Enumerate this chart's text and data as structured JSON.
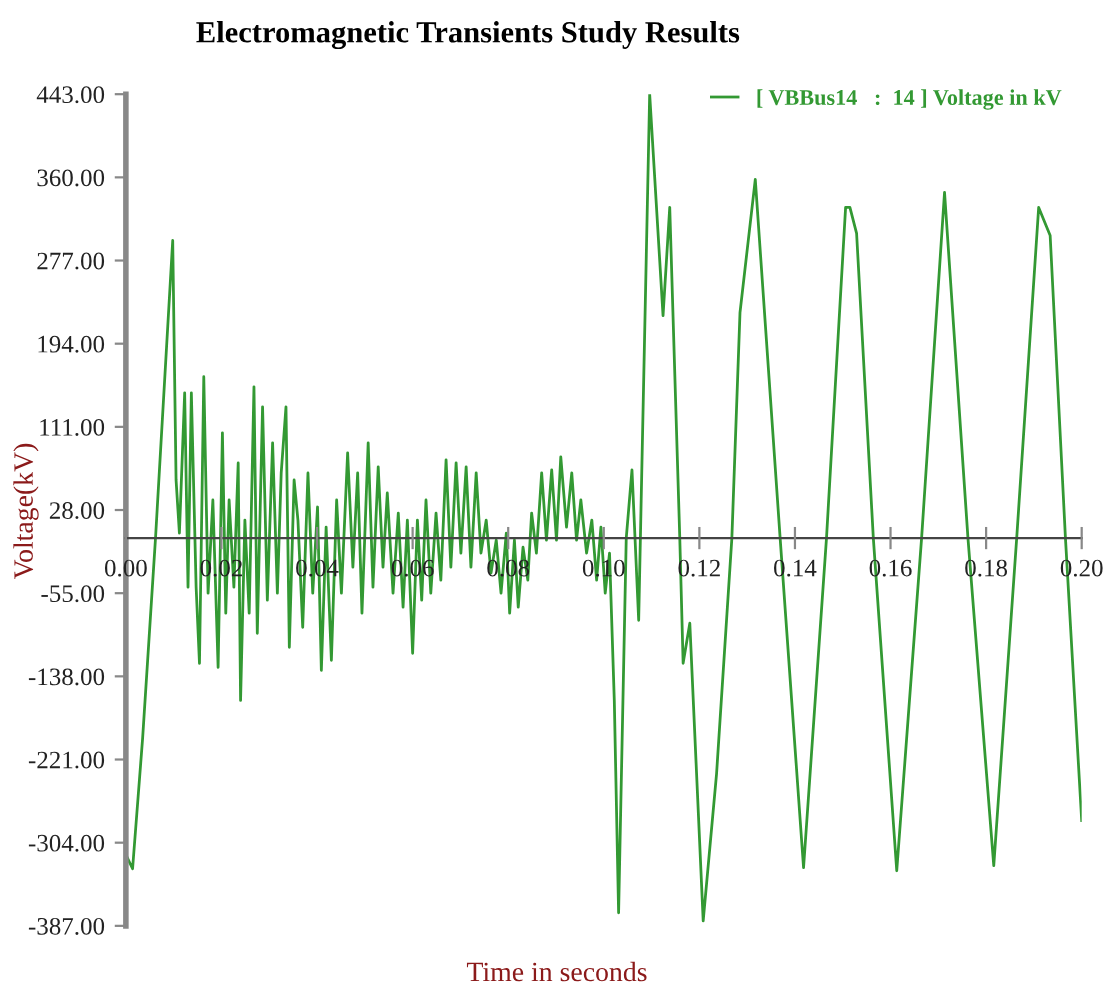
{
  "chart_data": {
    "type": "line",
    "title": "Electromagnetic Transients Study Results",
    "xlabel": "Time in seconds",
    "ylabel": "Voltage(kV)",
    "xlim": [
      0,
      0.2
    ],
    "ylim": [
      -387,
      443
    ],
    "xticks": [
      {
        "value": 0,
        "label": "0.00"
      },
      {
        "value": 0.02,
        "label": "0.02"
      },
      {
        "value": 0.04,
        "label": "0.04"
      },
      {
        "value": 0.06,
        "label": "0.06"
      },
      {
        "value": 0.08,
        "label": "0.08"
      },
      {
        "value": 0.1,
        "label": "0.10"
      },
      {
        "value": 0.12,
        "label": "0.12"
      },
      {
        "value": 0.14,
        "label": "0.14"
      },
      {
        "value": 0.16,
        "label": "0.16"
      },
      {
        "value": 0.18,
        "label": "0.18"
      },
      {
        "value": 0.2,
        "label": "0.20"
      }
    ],
    "yticks": [
      {
        "value": 443,
        "label": "443.00"
      },
      {
        "value": 360,
        "label": "360.00"
      },
      {
        "value": 277,
        "label": "277.00"
      },
      {
        "value": 194,
        "label": "194.00"
      },
      {
        "value": 111,
        "label": "111.00"
      },
      {
        "value": 28,
        "label": "28.00"
      },
      {
        "value": -55,
        "label": "-55.00"
      },
      {
        "value": -138,
        "label": "-138.00"
      },
      {
        "value": -221,
        "label": "-221.00"
      },
      {
        "value": -304,
        "label": "-304.00"
      },
      {
        "value": -387,
        "label": "-387.00"
      }
    ],
    "grid": false,
    "legend": "top right",
    "marker": "none",
    "line_style": "solid",
    "series": [
      {
        "name": "[ VBBus14   :  14 ] Voltage in kV",
        "color": "#339933",
        "x": [
          0,
          0.0014,
          0.0035,
          0.0062,
          0.0098,
          0.0105,
          0.0112,
          0.0123,
          0.013,
          0.0137,
          0.0147,
          0.0154,
          0.0163,
          0.0172,
          0.0182,
          0.0193,
          0.0202,
          0.0209,
          0.0216,
          0.0226,
          0.0235,
          0.024,
          0.0249,
          0.0258,
          0.0268,
          0.0275,
          0.0286,
          0.0296,
          0.0307,
          0.0317,
          0.0325,
          0.0335,
          0.0342,
          0.0352,
          0.036,
          0.037,
          0.0381,
          0.0391,
          0.0401,
          0.0409,
          0.0419,
          0.043,
          0.0441,
          0.0451,
          0.0464,
          0.0475,
          0.0485,
          0.0494,
          0.0507,
          0.0517,
          0.0528,
          0.0538,
          0.0547,
          0.0559,
          0.057,
          0.058,
          0.0589,
          0.06,
          0.061,
          0.0619,
          0.0628,
          0.0638,
          0.0649,
          0.0659,
          0.067,
          0.068,
          0.0691,
          0.0701,
          0.0712,
          0.0722,
          0.0733,
          0.0743,
          0.0754,
          0.0764,
          0.0775,
          0.0785,
          0.0796,
          0.0803,
          0.0813,
          0.0821,
          0.0831,
          0.0841,
          0.0849,
          0.0859,
          0.087,
          0.088,
          0.0891,
          0.0901,
          0.091,
          0.0922,
          0.0933,
          0.0943,
          0.0952,
          0.0964,
          0.0975,
          0.0985,
          0.0994,
          0.1003,
          0.1012,
          0.1022,
          0.1031,
          0.1047,
          0.1059,
          0.1073,
          0.1096,
          0.1124,
          0.1138,
          0.1159,
          0.1166,
          0.118,
          0.1208,
          0.1236,
          0.1268,
          0.1285,
          0.1317,
          0.1369,
          0.1418,
          0.1466,
          0.1506,
          0.1515,
          0.1529,
          0.1564,
          0.1613,
          0.1665,
          0.1713,
          0.1762,
          0.1816,
          0.1864,
          0.191,
          0.1934,
          0.1966,
          0.2
        ],
        "values": [
          -316,
          -330,
          -200,
          0,
          297,
          58,
          5,
          145,
          -49,
          145,
          -49,
          -125,
          161,
          -55,
          38,
          -129,
          105,
          -75,
          38,
          -49,
          75,
          -162,
          18,
          -75,
          151,
          -95,
          131,
          -62,
          95,
          -55,
          65,
          131,
          -109,
          58,
          18,
          -89,
          65,
          -55,
          31,
          -132,
          11,
          -122,
          38,
          -55,
          85,
          -29,
          65,
          -75,
          95,
          -49,
          71,
          -29,
          45,
          -55,
          25,
          -69,
          18,
          -115,
          18,
          -62,
          38,
          -55,
          25,
          -42,
          78,
          -29,
          75,
          -15,
          71,
          -29,
          65,
          -15,
          18,
          -35,
          -2,
          -55,
          5,
          -75,
          -2,
          -69,
          -9,
          -42,
          25,
          -15,
          65,
          -2,
          68,
          -2,
          81,
          11,
          65,
          -2,
          38,
          -15,
          18,
          -42,
          11,
          -55,
          -15,
          -162,
          -374,
          0,
          68,
          -82,
          443,
          222,
          330,
          0,
          -125,
          -85,
          -382,
          -235,
          0,
          225,
          358,
          0,
          -329,
          0,
          330,
          330,
          304,
          0,
          -332,
          0,
          345,
          0,
          -327,
          0,
          330,
          302,
          0,
          -282
        ]
      }
    ]
  }
}
